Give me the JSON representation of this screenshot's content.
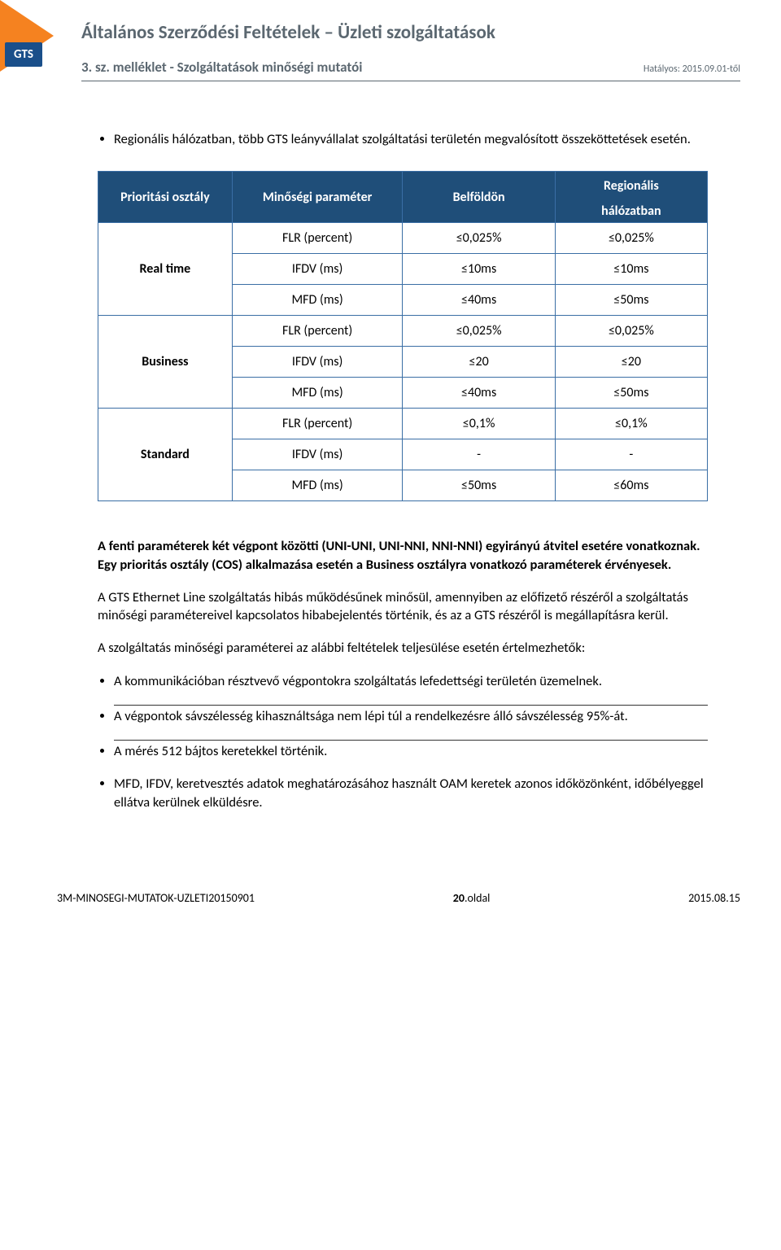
{
  "header": {
    "logo_text": "GTS",
    "title": "Általános Szerződési Feltételek – Üzleti szolgáltatások",
    "subtitle": "3. sz. melléklet - Szolgáltatások minőségi mutatói",
    "effective": "Hatályos: 2015.09.01-től",
    "triangle_color": "#f58220",
    "logo_bg": "#1a4f8a",
    "heading_color": "#5b6770"
  },
  "intro_bullet": "Regionális hálózatban, több GTS leányvállalat szolgáltatási területén megvalósított összeköttetések esetén.",
  "table": {
    "header_bg": "#1f4e79",
    "header_fg": "#ffffff",
    "border_color": "#3a6ea5",
    "columns": {
      "c1": "Prioritási osztály",
      "c2": "Minőségi paraméter",
      "c3": "Belföldön",
      "c4a": "Regionális",
      "c4b": "hálózatban"
    },
    "groups": [
      {
        "head": "Real time",
        "rows": [
          {
            "p": "FLR (percent)",
            "v1": "≤0,025%",
            "v2": "≤0,025%"
          },
          {
            "p": "IFDV (ms)",
            "v1": "≤10ms",
            "v2": "≤10ms"
          },
          {
            "p": "MFD (ms)",
            "v1": "≤40ms",
            "v2": "≤50ms"
          }
        ]
      },
      {
        "head": "Business",
        "rows": [
          {
            "p": "FLR (percent)",
            "v1": "≤0,025%",
            "v2": "≤0,025%"
          },
          {
            "p": "IFDV (ms)",
            "v1": "≤20",
            "v2": "≤20"
          },
          {
            "p": "MFD (ms)",
            "v1": "≤40ms",
            "v2": "≤50ms"
          }
        ]
      },
      {
        "head": "Standard",
        "rows": [
          {
            "p": "FLR (percent)",
            "v1": "≤0,1%",
            "v2": "≤0,1%"
          },
          {
            "p": "IFDV (ms)",
            "v1": "-",
            "v2": "-"
          },
          {
            "p": "MFD (ms)",
            "v1": "≤50ms",
            "v2": "≤60ms"
          }
        ]
      }
    ]
  },
  "body": {
    "p1": "A fenti paraméterek két végpont közötti (UNI-UNI, UNI-NNI, NNI-NNI) egyirányú átvitel esetére vonatkoznak. Egy prioritás osztály (COS) alkalmazása esetén a Business osztályra vonatkozó paraméterek érvényesek.",
    "p2": "A GTS Ethernet Line szolgáltatás hibás működésűnek minősül, amennyiben az előfizető részéről a szolgáltatás minőségi paramétereivel kapcsolatos hibabejelentés történik, és az a GTS részéről is megállapításra kerül.",
    "p3": "A szolgáltatás minőségi paraméterei az alábbi feltételek teljesülése esetén értelmezhetők:",
    "bullets": [
      "A kommunikációban résztvevő végpontokra szolgáltatás lefedettségi területén üzemelnek.",
      "A végpontok sávszélesség kihasználtsága nem lépi túl a rendelkezésre álló sávszélesség 95%-át.",
      "A mérés 512 bájtos keretekkel történik.",
      "MFD, IFDV, keretvesztés adatok meghatározásához használt OAM keretek azonos időközönként, időbélyeggel ellátva kerülnek elküldésre."
    ]
  },
  "footer": {
    "left": "3M-MINOSEGI-MUTATOK-UZLETI20150901",
    "center_num": "20",
    "center_suffix": ".oldal",
    "right": "2015.08.15"
  }
}
